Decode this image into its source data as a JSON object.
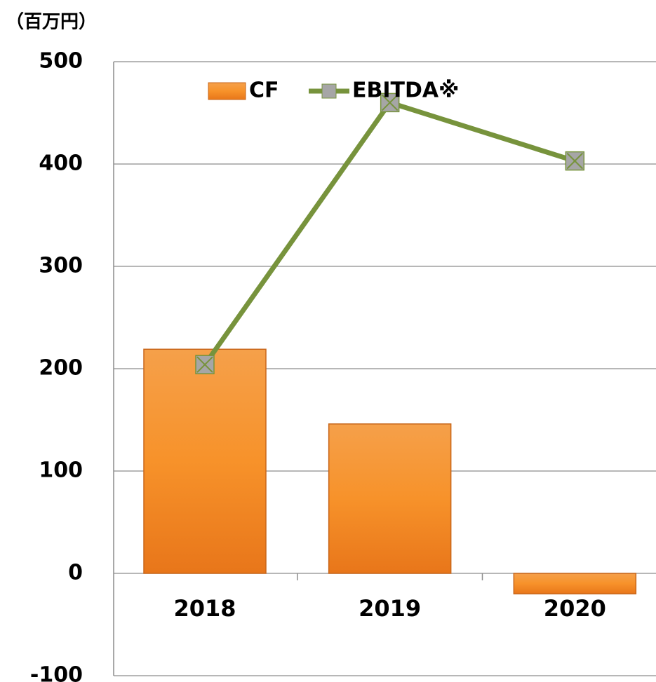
{
  "chart_data": {
    "type": "bar",
    "y_unit_label": "（百万円）",
    "categories": [
      "2018",
      "2019",
      "2020"
    ],
    "series": [
      {
        "name": "CF",
        "type": "bar",
        "color": "#f7931e",
        "values": [
          219,
          146,
          -20
        ]
      },
      {
        "name": "EBITDA※",
        "type": "line",
        "color": "#77933c",
        "marker_color": "#a6a6a6",
        "values": [
          204,
          460,
          403
        ]
      }
    ],
    "ylim": [
      -100,
      500
    ],
    "yticks": [
      -100,
      0,
      100,
      200,
      300,
      400,
      500
    ],
    "grid": true,
    "legend": "top"
  }
}
